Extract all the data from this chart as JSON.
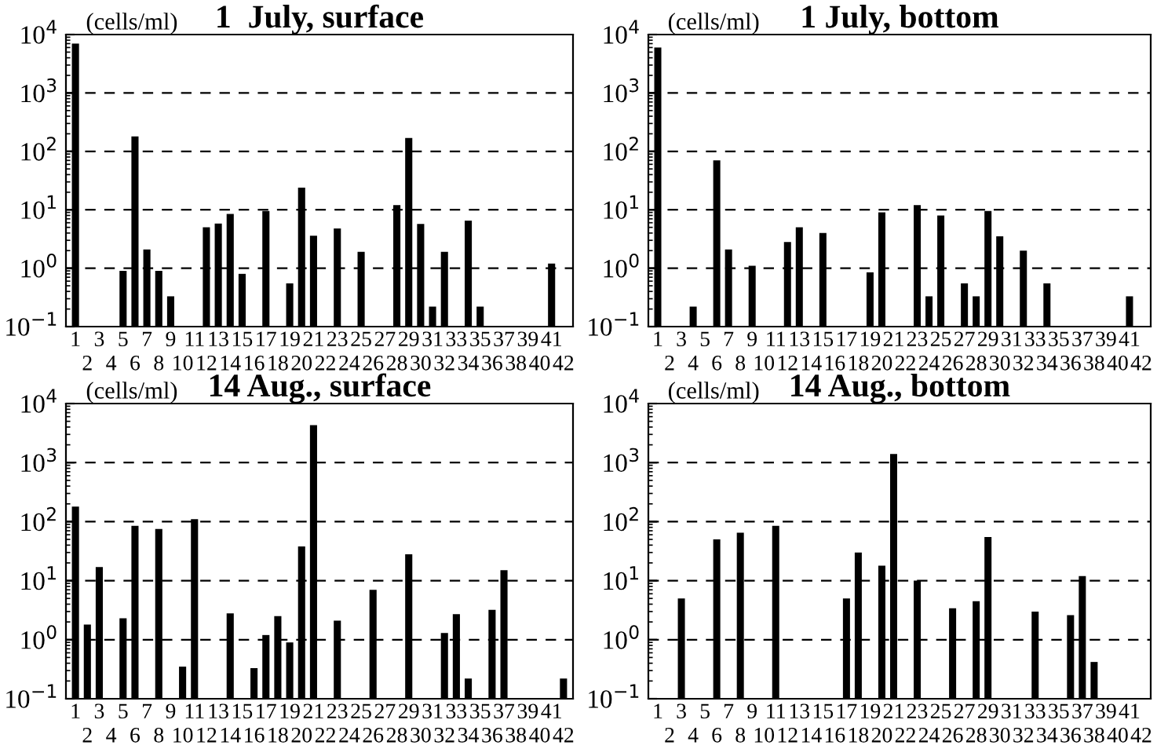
{
  "chart_data": [
    {
      "type": "bar",
      "title": "1  July, surface",
      "ylabel": "(cells/ml)",
      "categories": [
        "1",
        "2",
        "3",
        "4",
        "5",
        "6",
        "7",
        "8",
        "9",
        "10",
        "11",
        "12",
        "13",
        "14",
        "15",
        "16",
        "17",
        "18",
        "19",
        "20",
        "21",
        "22",
        "23",
        "24",
        "25",
        "26",
        "27",
        "28",
        "29",
        "30",
        "31",
        "32",
        "33",
        "34",
        "35",
        "36",
        "37",
        "38",
        "39",
        "40",
        "41",
        "42"
      ],
      "color": "#000000",
      "log": true,
      "grid": "y",
      "ylim": [
        0.1,
        10000
      ],
      "yticks": [
        {
          "value": 0.1,
          "label": "10$^{−1}$"
        },
        {
          "value": 1,
          "label": "10$^{0}$"
        },
        {
          "value": 10,
          "label": "10$^{1}$"
        },
        {
          "value": 100,
          "label": "10$^{2}$"
        },
        {
          "value": 1000,
          "label": "10$^{3}$"
        },
        {
          "value": 10000,
          "label": "10$^{4}$"
        }
      ],
      "values": [
        7000,
        null,
        null,
        null,
        0.9,
        180,
        2.1,
        0.9,
        0.33,
        null,
        null,
        5,
        5.8,
        8.5,
        0.8,
        null,
        9.5,
        null,
        0.55,
        24,
        3.6,
        null,
        4.8,
        null,
        1.9,
        null,
        null,
        12,
        170,
        5.7,
        0.22,
        1.9,
        null,
        6.5,
        0.22,
        null,
        null,
        null,
        null,
        null,
        1.2,
        null
      ]
    },
    {
      "type": "bar",
      "title": "1 July, bottom",
      "ylabel": "(cells/ml)",
      "categories": [
        "1",
        "2",
        "3",
        "4",
        "5",
        "6",
        "7",
        "8",
        "9",
        "10",
        "11",
        "12",
        "13",
        "14",
        "15",
        "16",
        "17",
        "18",
        "19",
        "20",
        "21",
        "22",
        "23",
        "24",
        "25",
        "26",
        "27",
        "28",
        "29",
        "30",
        "31",
        "32",
        "33",
        "34",
        "35",
        "36",
        "37",
        "38",
        "39",
        "40",
        "41",
        "42"
      ],
      "color": "#000000",
      "log": true,
      "grid": "y",
      "ylim": [
        0.1,
        10000
      ],
      "yticks": [
        {
          "value": 0.1,
          "label": "10$^{−1}$"
        },
        {
          "value": 1,
          "label": "10$^{0}$"
        },
        {
          "value": 10,
          "label": "10$^{1}$"
        },
        {
          "value": 100,
          "label": "10$^{2}$"
        },
        {
          "value": 1000,
          "label": "10$^{3}$"
        },
        {
          "value": 10000,
          "label": "10$^{4}$"
        }
      ],
      "values": [
        6000,
        null,
        null,
        0.22,
        null,
        70,
        2.1,
        null,
        1.1,
        null,
        null,
        2.8,
        5,
        null,
        4,
        null,
        null,
        null,
        0.85,
        9,
        null,
        null,
        12,
        0.33,
        8,
        null,
        0.55,
        0.33,
        9.5,
        3.5,
        null,
        2,
        null,
        0.55,
        null,
        null,
        null,
        null,
        null,
        null,
        0.33,
        null
      ]
    },
    {
      "type": "bar",
      "title": "14 Aug., surface",
      "ylabel": "(cells/ml)",
      "categories": [
        "1",
        "2",
        "3",
        "4",
        "5",
        "6",
        "7",
        "8",
        "9",
        "10",
        "11",
        "12",
        "13",
        "14",
        "15",
        "16",
        "17",
        "18",
        "19",
        "20",
        "21",
        "22",
        "23",
        "24",
        "25",
        "26",
        "27",
        "28",
        "29",
        "30",
        "31",
        "32",
        "33",
        "34",
        "35",
        "36",
        "37",
        "38",
        "39",
        "40",
        "41",
        "42"
      ],
      "color": "#000000",
      "log": true,
      "grid": "y",
      "ylim": [
        0.1,
        10000
      ],
      "yticks": [
        {
          "value": 0.1,
          "label": "10$^{−1}$"
        },
        {
          "value": 1,
          "label": "10$^{0}$"
        },
        {
          "value": 10,
          "label": "10$^{1}$"
        },
        {
          "value": 100,
          "label": "10$^{2}$"
        },
        {
          "value": 1000,
          "label": "10$^{3}$"
        },
        {
          "value": 10000,
          "label": "10$^{4}$"
        }
      ],
      "values": [
        180,
        1.8,
        17,
        null,
        2.3,
        85,
        null,
        75,
        null,
        0.35,
        110,
        null,
        null,
        2.8,
        null,
        0.33,
        1.2,
        2.5,
        0.9,
        38,
        4300,
        null,
        2.1,
        null,
        null,
        7,
        null,
        null,
        28,
        null,
        null,
        1.3,
        2.7,
        0.22,
        null,
        3.2,
        15,
        null,
        null,
        null,
        null,
        0.22
      ]
    },
    {
      "type": "bar",
      "title": "14 Aug., bottom",
      "ylabel": "(cells/ml)",
      "categories": [
        "1",
        "2",
        "3",
        "4",
        "5",
        "6",
        "7",
        "8",
        "9",
        "10",
        "11",
        "12",
        "13",
        "14",
        "15",
        "16",
        "17",
        "18",
        "19",
        "20",
        "21",
        "22",
        "23",
        "24",
        "25",
        "26",
        "27",
        "28",
        "29",
        "30",
        "31",
        "32",
        "33",
        "34",
        "35",
        "36",
        "37",
        "38",
        "39",
        "40",
        "41",
        "42"
      ],
      "color": "#000000",
      "log": true,
      "grid": "y",
      "ylim": [
        0.1,
        10000
      ],
      "yticks": [
        {
          "value": 0.1,
          "label": "10$^{−1}$"
        },
        {
          "value": 1,
          "label": "10$^{0}$"
        },
        {
          "value": 10,
          "label": "10$^{1}$"
        },
        {
          "value": 100,
          "label": "10$^{2}$"
        },
        {
          "value": 1000,
          "label": "10$^{3}$"
        },
        {
          "value": 10000,
          "label": "10$^{4}$"
        }
      ],
      "values": [
        null,
        null,
        5,
        null,
        null,
        50,
        null,
        65,
        null,
        null,
        85,
        null,
        null,
        null,
        null,
        null,
        5,
        30,
        null,
        18,
        1400,
        null,
        10,
        null,
        null,
        3.4,
        null,
        4.5,
        55,
        null,
        null,
        null,
        3,
        null,
        null,
        2.6,
        12,
        0.42,
        null,
        null,
        null,
        null
      ]
    }
  ]
}
